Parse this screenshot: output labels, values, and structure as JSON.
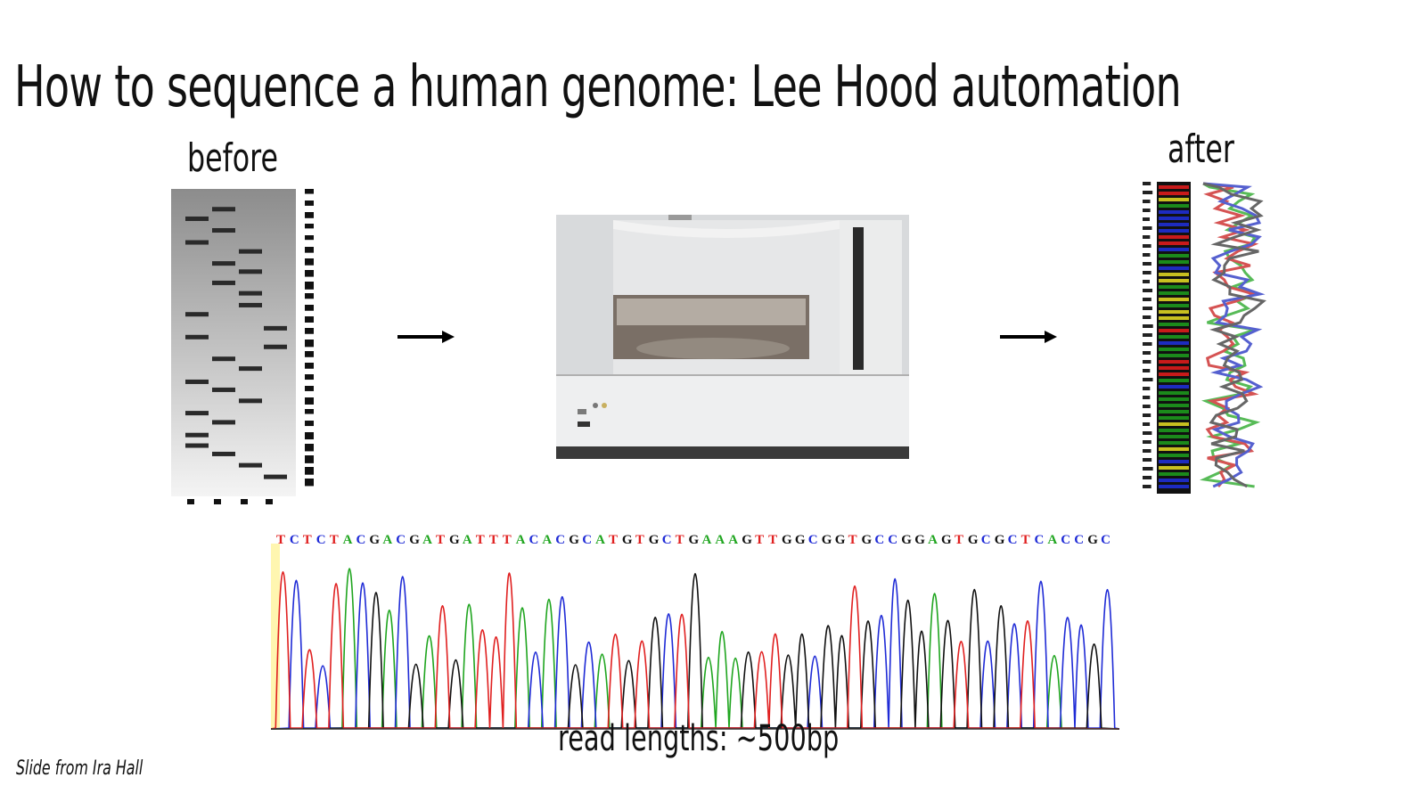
{
  "slide": {
    "title": "How to sequence a human genome: Lee Hood automation",
    "before_label": "before",
    "after_label": "after",
    "caption": "read lengths: ~500bp",
    "credit": "Slide from Ira Hall"
  },
  "images": {
    "gel_icon": "radioactive-sequencing-gel",
    "sequencer_icon": "capillary-dna-sequencer",
    "lane_icon": "fluorescent-sequencing-lane",
    "chromatogram_icon": "dna-sequencing-chromatogram"
  },
  "chromatogram": {
    "sequence": "TCTCTACGACGATGATTTACACGCATGTGCTGAAAGTTGGCGGTGCCGGAGTGCGCTCACCGC",
    "colors": {
      "A": "#1fa51f",
      "C": "#1f2bd6",
      "G": "#111111",
      "T": "#e02020"
    }
  }
}
